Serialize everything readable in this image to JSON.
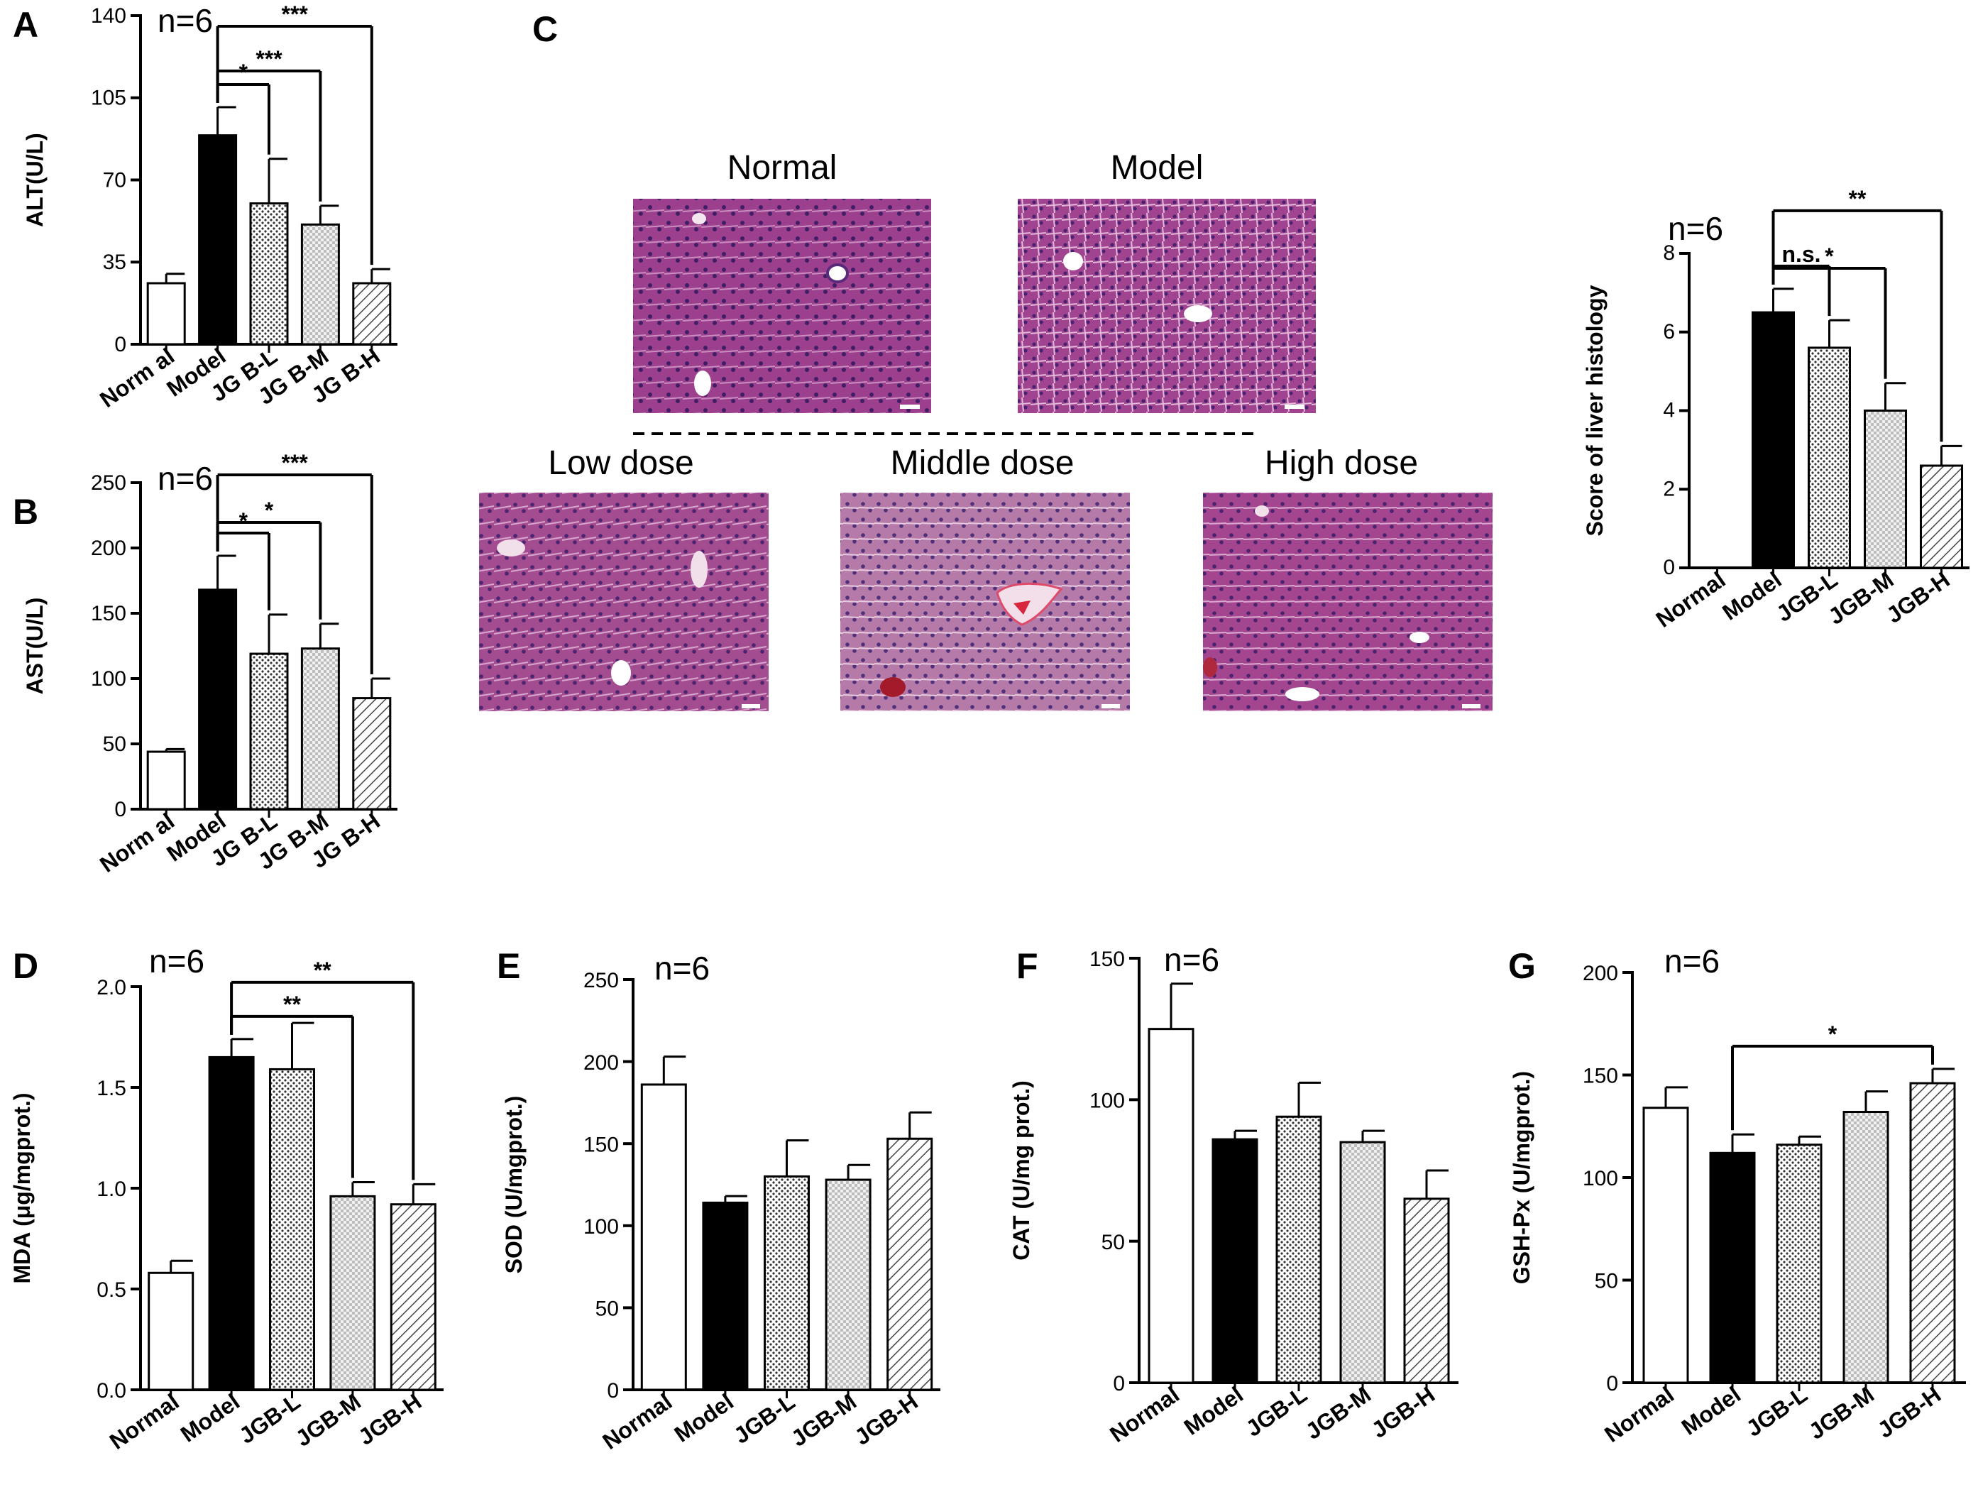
{
  "panels": {
    "A": "A",
    "B": "B",
    "C": "C",
    "D": "D",
    "E": "E",
    "F": "F",
    "G": "G"
  },
  "histology": {
    "images": [
      "Normal",
      "Model",
      "Low dose",
      "Middle dose",
      "High dose"
    ]
  },
  "chart_data": [
    {
      "id": "A",
      "type": "bar",
      "n_label": "n=6",
      "categories": [
        "Norm al",
        "Model",
        "JG B-L",
        "JG B-M",
        "JG B-H"
      ],
      "values": [
        26,
        89,
        60,
        51,
        26
      ],
      "errors": [
        4,
        12,
        19,
        8,
        6
      ],
      "ylabel": "ALT(U/L)",
      "ylim": [
        0,
        140
      ],
      "yticks": [
        0,
        35,
        70,
        105,
        140
      ],
      "significance": [
        {
          "from": 1,
          "to": 2,
          "label": "*"
        },
        {
          "from": 1,
          "to": 3,
          "label": "***"
        },
        {
          "from": 1,
          "to": 4,
          "label": "***"
        }
      ]
    },
    {
      "id": "B",
      "type": "bar",
      "n_label": "n=6",
      "categories": [
        "Norm al",
        "Model",
        "JG B-L",
        "JG B-M",
        "JG B-H"
      ],
      "values": [
        44,
        168,
        119,
        123,
        85
      ],
      "errors": [
        2,
        26,
        30,
        19,
        15
      ],
      "ylabel": "AST(U/L)",
      "ylim": [
        0,
        250
      ],
      "yticks": [
        0,
        50,
        100,
        150,
        200,
        250
      ],
      "significance": [
        {
          "from": 1,
          "to": 2,
          "label": "*"
        },
        {
          "from": 1,
          "to": 3,
          "label": "*"
        },
        {
          "from": 1,
          "to": 4,
          "label": "***"
        }
      ]
    },
    {
      "id": "C2",
      "type": "bar",
      "n_label": "n=6",
      "categories": [
        "Normal",
        "Model",
        "JGB-L",
        "JGB-M",
        "JGB-H"
      ],
      "values": [
        0,
        6.5,
        5.6,
        4.0,
        2.6
      ],
      "errors": [
        0,
        0.6,
        0.7,
        0.7,
        0.5
      ],
      "ylabel": "Score of liver histology",
      "ylim": [
        0,
        8
      ],
      "yticks": [
        0,
        2,
        4,
        6,
        8
      ],
      "significance": [
        {
          "from": 1,
          "to": 2,
          "label": "n.s."
        },
        {
          "from": 1,
          "to": 3,
          "label": "*"
        },
        {
          "from": 1,
          "to": 4,
          "label": "**"
        }
      ]
    },
    {
      "id": "D",
      "type": "bar",
      "n_label": "n=6",
      "categories": [
        "Normal",
        "Model",
        "JGB-L",
        "JGB-M",
        "JGB-H"
      ],
      "values": [
        0.58,
        1.65,
        1.59,
        0.96,
        0.92
      ],
      "errors": [
        0.06,
        0.09,
        0.23,
        0.07,
        0.1
      ],
      "ylabel": "MDA (μg/mgprot.)",
      "ylim": [
        0,
        2.0
      ],
      "yticks": [
        "0.0",
        "0.5",
        "1.0",
        "1.5",
        "2.0"
      ],
      "significance": [
        {
          "from": 1,
          "to": 3,
          "label": "**"
        },
        {
          "from": 1,
          "to": 4,
          "label": "**"
        }
      ]
    },
    {
      "id": "E",
      "type": "bar",
      "n_label": "n=6",
      "categories": [
        "Normal",
        "Model",
        "JGB-L",
        "JGB-M",
        "JGB-H"
      ],
      "values": [
        186,
        114,
        130,
        128,
        153
      ],
      "errors": [
        17,
        4,
        22,
        9,
        16
      ],
      "ylabel": "SOD (U/mgprot.)",
      "ylim": [
        0,
        250
      ],
      "yticks": [
        0,
        50,
        100,
        150,
        200,
        250
      ],
      "significance": []
    },
    {
      "id": "F",
      "type": "bar",
      "n_label": "n=6",
      "categories": [
        "Normal",
        "Model",
        "JGB-L",
        "JGB-M",
        "JGB-H"
      ],
      "values": [
        125,
        86,
        94,
        85,
        65
      ],
      "errors": [
        16,
        3,
        12,
        4,
        10
      ],
      "ylabel": "CAT (U/mg prot.)",
      "ylim": [
        0,
        150
      ],
      "yticks": [
        0,
        50,
        100,
        150
      ],
      "significance": []
    },
    {
      "id": "G",
      "type": "bar",
      "n_label": "n=6",
      "categories": [
        "Normal",
        "Model",
        "JGB-L",
        "JGB-M",
        "JGB-H"
      ],
      "values": [
        134,
        112,
        116,
        132,
        146
      ],
      "errors": [
        10,
        9,
        4,
        10,
        7
      ],
      "ylabel": "GSH-Px (U/mgprot.)",
      "ylim": [
        0,
        200
      ],
      "yticks": [
        0,
        50,
        100,
        150,
        200
      ],
      "significance": [
        {
          "from": 1,
          "to": 4,
          "label": "*"
        }
      ]
    }
  ]
}
